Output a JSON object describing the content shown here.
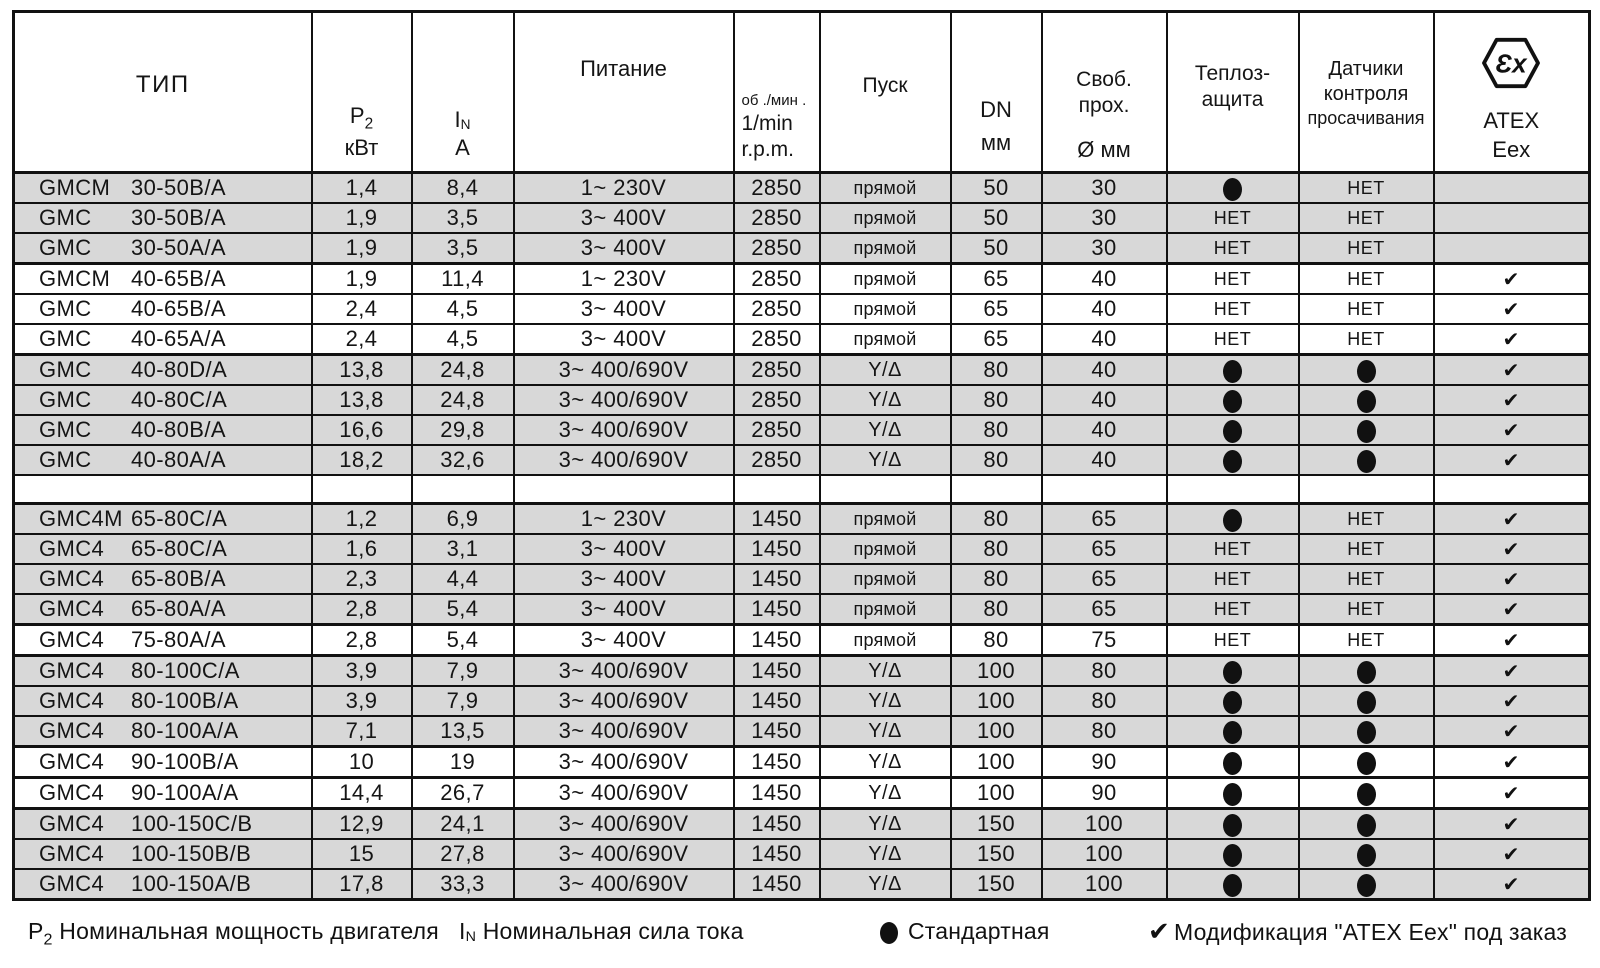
{
  "header": {
    "type": "ТИП",
    "p2_main": "P",
    "p2_sub": "2",
    "p2_unit": "кВт",
    "in_main": "I",
    "in_sub": "N",
    "in_unit": "A",
    "power": "Питание",
    "rpm_ru": "об ./мин .",
    "rpm_en1": "1/min",
    "rpm_en2": "r.p.m.",
    "start": "Пуск",
    "dn_main": "DN",
    "dn_unit": "мм",
    "free1": "Своб.",
    "free2": "прох.",
    "free_unit": "Ø мм",
    "thermal1": "Теплоз-",
    "thermal2": "ащита",
    "sensors1": "Датчики",
    "sensors2": "контроля",
    "sensors3": "просачивания",
    "atex_icon_text": "Ɛx",
    "atex1": "ATEX",
    "atex2": "Eex"
  },
  "symbols": {
    "check": "✔",
    "dot": "filled-dot"
  },
  "colors": {
    "row_gray": "#d8d8d8",
    "border": "#111111",
    "text": "#151515"
  },
  "rows": [
    {
      "series": "GMCM",
      "size": "30-50B/A",
      "p2": "1,4",
      "in": "8,4",
      "power": "1~ 230V",
      "rpm": "2850",
      "start": "прямой",
      "dn": "50",
      "free": "30",
      "thermal": "dot",
      "sensors": "НЕТ",
      "atex": "",
      "shade": "gray",
      "thick_top": false,
      "spacer": false
    },
    {
      "series": "GMC",
      "size": "30-50B/A",
      "p2": "1,9",
      "in": "3,5",
      "power": "3~ 400V",
      "rpm": "2850",
      "start": "прямой",
      "dn": "50",
      "free": "30",
      "thermal": "НЕТ",
      "sensors": "НЕТ",
      "atex": "",
      "shade": "gray",
      "thick_top": false,
      "spacer": false
    },
    {
      "series": "GMC",
      "size": "30-50A/A",
      "p2": "1,9",
      "in": "3,5",
      "power": "3~ 400V",
      "rpm": "2850",
      "start": "прямой",
      "dn": "50",
      "free": "30",
      "thermal": "НЕТ",
      "sensors": "НЕТ",
      "atex": "",
      "shade": "gray",
      "thick_top": false,
      "spacer": false
    },
    {
      "series": "GMCM",
      "size": "40-65B/A",
      "p2": "1,9",
      "in": "11,4",
      "power": "1~ 230V",
      "rpm": "2850",
      "start": "прямой",
      "dn": "65",
      "free": "40",
      "thermal": "НЕТ",
      "sensors": "НЕТ",
      "atex": "check",
      "shade": "white",
      "thick_top": true,
      "spacer": false
    },
    {
      "series": "GMC",
      "size": "40-65B/A",
      "p2": "2,4",
      "in": "4,5",
      "power": "3~ 400V",
      "rpm": "2850",
      "start": "прямой",
      "dn": "65",
      "free": "40",
      "thermal": "НЕТ",
      "sensors": "НЕТ",
      "atex": "check",
      "shade": "white",
      "thick_top": false,
      "spacer": false
    },
    {
      "series": "GMC",
      "size": "40-65A/A",
      "p2": "2,4",
      "in": "4,5",
      "power": "3~ 400V",
      "rpm": "2850",
      "start": "прямой",
      "dn": "65",
      "free": "40",
      "thermal": "НЕТ",
      "sensors": "НЕТ",
      "atex": "check",
      "shade": "white",
      "thick_top": false,
      "spacer": false
    },
    {
      "series": "GMC",
      "size": "40-80D/A",
      "p2": "13,8",
      "in": "24,8",
      "power": "3~ 400/690V",
      "rpm": "2850",
      "start": "Y/Δ",
      "dn": "80",
      "free": "40",
      "thermal": "dot",
      "sensors": "dot",
      "atex": "check",
      "shade": "gray",
      "thick_top": true,
      "spacer": false
    },
    {
      "series": "GMC",
      "size": "40-80C/A",
      "p2": "13,8",
      "in": "24,8",
      "power": "3~ 400/690V",
      "rpm": "2850",
      "start": "Y/Δ",
      "dn": "80",
      "free": "40",
      "thermal": "dot",
      "sensors": "dot",
      "atex": "check",
      "shade": "gray",
      "thick_top": false,
      "spacer": false
    },
    {
      "series": "GMC",
      "size": "40-80B/A",
      "p2": "16,6",
      "in": "29,8",
      "power": "3~ 400/690V",
      "rpm": "2850",
      "start": "Y/Δ",
      "dn": "80",
      "free": "40",
      "thermal": "dot",
      "sensors": "dot",
      "atex": "check",
      "shade": "gray",
      "thick_top": false,
      "spacer": false
    },
    {
      "series": "GMC",
      "size": "40-80A/A",
      "p2": "18,2",
      "in": "32,6",
      "power": "3~ 400/690V",
      "rpm": "2850",
      "start": "Y/Δ",
      "dn": "80",
      "free": "40",
      "thermal": "dot",
      "sensors": "dot",
      "atex": "check",
      "shade": "gray",
      "thick_top": false,
      "spacer": false
    },
    {
      "series": "",
      "size": "",
      "p2": "",
      "in": "",
      "power": "",
      "rpm": "",
      "start": "",
      "dn": "",
      "free": "",
      "thermal": "",
      "sensors": "",
      "atex": "",
      "shade": "white",
      "thick_top": false,
      "spacer": true
    },
    {
      "series": "GMC4M",
      "size": "65-80C/A",
      "p2": "1,2",
      "in": "6,9",
      "power": "1~ 230V",
      "rpm": "1450",
      "start": "прямой",
      "dn": "80",
      "free": "65",
      "thermal": "dot",
      "sensors": "НЕТ",
      "atex": "check",
      "shade": "gray",
      "thick_top": true,
      "spacer": false
    },
    {
      "series": "GMC4",
      "size": "65-80C/A",
      "p2": "1,6",
      "in": "3,1",
      "power": "3~ 400V",
      "rpm": "1450",
      "start": "прямой",
      "dn": "80",
      "free": "65",
      "thermal": "НЕТ",
      "sensors": "НЕТ",
      "atex": "check",
      "shade": "gray",
      "thick_top": false,
      "spacer": false
    },
    {
      "series": "GMC4",
      "size": "65-80B/A",
      "p2": "2,3",
      "in": "4,4",
      "power": "3~ 400V",
      "rpm": "1450",
      "start": "прямой",
      "dn": "80",
      "free": "65",
      "thermal": "НЕТ",
      "sensors": "НЕТ",
      "atex": "check",
      "shade": "gray",
      "thick_top": false,
      "spacer": false
    },
    {
      "series": "GMC4",
      "size": "65-80A/A",
      "p2": "2,8",
      "in": "5,4",
      "power": "3~ 400V",
      "rpm": "1450",
      "start": "прямой",
      "dn": "80",
      "free": "65",
      "thermal": "НЕТ",
      "sensors": "НЕТ",
      "atex": "check",
      "shade": "gray",
      "thick_top": false,
      "spacer": false
    },
    {
      "series": "GMC4",
      "size": "75-80A/A",
      "p2": "2,8",
      "in": "5,4",
      "power": "3~ 400V",
      "rpm": "1450",
      "start": "прямой",
      "dn": "80",
      "free": "75",
      "thermal": "НЕТ",
      "sensors": "НЕТ",
      "atex": "check",
      "shade": "white",
      "thick_top": true,
      "spacer": false
    },
    {
      "series": "GMC4",
      "size": "80-100C/A",
      "p2": "3,9",
      "in": "7,9",
      "power": "3~ 400/690V",
      "rpm": "1450",
      "start": "Y/Δ",
      "dn": "100",
      "free": "80",
      "thermal": "dot",
      "sensors": "dot",
      "atex": "check",
      "shade": "gray",
      "thick_top": true,
      "spacer": false
    },
    {
      "series": "GMC4",
      "size": "80-100B/A",
      "p2": "3,9",
      "in": "7,9",
      "power": "3~ 400/690V",
      "rpm": "1450",
      "start": "Y/Δ",
      "dn": "100",
      "free": "80",
      "thermal": "dot",
      "sensors": "dot",
      "atex": "check",
      "shade": "gray",
      "thick_top": false,
      "spacer": false
    },
    {
      "series": "GMC4",
      "size": "80-100A/A",
      "p2": "7,1",
      "in": "13,5",
      "power": "3~ 400/690V",
      "rpm": "1450",
      "start": "Y/Δ",
      "dn": "100",
      "free": "80",
      "thermal": "dot",
      "sensors": "dot",
      "atex": "check",
      "shade": "gray",
      "thick_top": false,
      "spacer": false
    },
    {
      "series": "GMC4",
      "size": "90-100B/A",
      "p2": "10",
      "in": "19",
      "power": "3~ 400/690V",
      "rpm": "1450",
      "start": "Y/Δ",
      "dn": "100",
      "free": "90",
      "thermal": "dot",
      "sensors": "dot",
      "atex": "check",
      "shade": "white",
      "thick_top": true,
      "spacer": false
    },
    {
      "series": "GMC4",
      "size": "90-100A/A",
      "p2": "14,4",
      "in": "26,7",
      "power": "3~ 400/690V",
      "rpm": "1450",
      "start": "Y/Δ",
      "dn": "100",
      "free": "90",
      "thermal": "dot",
      "sensors": "dot",
      "atex": "check",
      "shade": "white",
      "thick_top": true,
      "spacer": false
    },
    {
      "series": "GMC4",
      "size": "100-150C/B",
      "p2": "12,9",
      "in": "24,1",
      "power": "3~ 400/690V",
      "rpm": "1450",
      "start": "Y/Δ",
      "dn": "150",
      "free": "100",
      "thermal": "dot",
      "sensors": "dot",
      "atex": "check",
      "shade": "gray",
      "thick_top": true,
      "spacer": false
    },
    {
      "series": "GMC4",
      "size": "100-150B/B",
      "p2": "15",
      "in": "27,8",
      "power": "3~ 400/690V",
      "rpm": "1450",
      "start": "Y/Δ",
      "dn": "150",
      "free": "100",
      "thermal": "dot",
      "sensors": "dot",
      "atex": "check",
      "shade": "gray",
      "thick_top": false,
      "spacer": false
    },
    {
      "series": "GMC4",
      "size": "100-150A/B",
      "p2": "17,8",
      "in": "33,3",
      "power": "3~ 400/690V",
      "rpm": "1450",
      "start": "Y/Δ",
      "dn": "150",
      "free": "100",
      "thermal": "dot",
      "sensors": "dot",
      "atex": "check",
      "shade": "gray",
      "thick_top": false,
      "spacer": false
    }
  ],
  "legend": {
    "p2_sym_main": "P",
    "p2_sym_sub": "2",
    "p2_text": "Номинальная мощность двигателя",
    "in_sym_main": "I",
    "in_sym_sub": "N",
    "in_text": "Номинальная сила тока",
    "dot_label": "Стандартная",
    "check_label": "Модификация \"ATEX Eex\" под заказ"
  }
}
